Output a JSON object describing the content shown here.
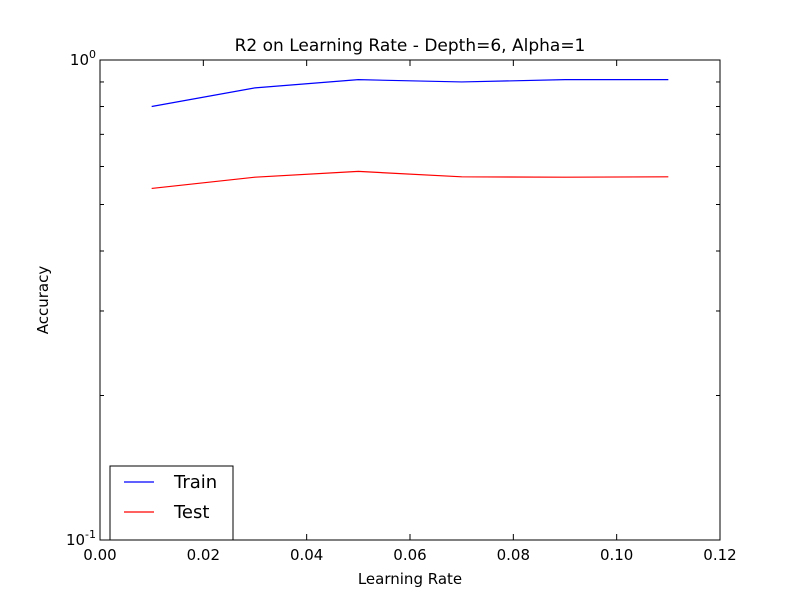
{
  "chart_data": {
    "type": "line",
    "title": "R2 on Learning Rate - Depth=6, Alpha=1",
    "xlabel": "Learning Rate",
    "ylabel": "Accuracy",
    "xlim": [
      0.0,
      0.12
    ],
    "ylim": [
      0.1,
      1.0
    ],
    "yscale": "log",
    "grid": false,
    "legend_position": "bottom-left",
    "x_ticks": [
      {
        "value": 0.0,
        "label": "0.00"
      },
      {
        "value": 0.02,
        "label": "0.02"
      },
      {
        "value": 0.04,
        "label": "0.04"
      },
      {
        "value": 0.06,
        "label": "0.06"
      },
      {
        "value": 0.08,
        "label": "0.08"
      },
      {
        "value": 0.1,
        "label": "0.10"
      },
      {
        "value": 0.12,
        "label": "0.12"
      }
    ],
    "y_ticks": [
      {
        "value": 0.1,
        "base": "10",
        "exp": "-1"
      },
      {
        "value": 1.0,
        "base": "10",
        "exp": "0"
      }
    ],
    "x": [
      0.01,
      0.03,
      0.05,
      0.07,
      0.09,
      0.11
    ],
    "series": [
      {
        "name": "Train",
        "color": "#0000ff",
        "values": [
          0.8,
          0.875,
          0.91,
          0.9,
          0.91,
          0.91
        ]
      },
      {
        "name": "Test",
        "color": "#ff0000",
        "values": [
          0.54,
          0.57,
          0.586,
          0.571,
          0.57,
          0.571
        ]
      }
    ]
  }
}
